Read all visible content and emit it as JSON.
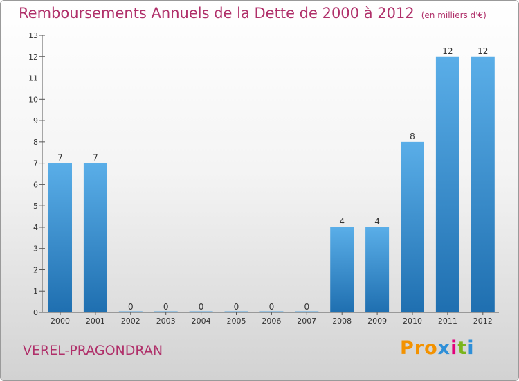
{
  "title": "Remboursements Annuels de la Dette de 2000 à 2012",
  "unit": "(en milliers d'€)",
  "commune": "VEREL-PRAGONDRAN",
  "logo": {
    "text": "Proxiti",
    "parts": [
      "Pro",
      "x",
      "i",
      "t",
      "i"
    ]
  },
  "colors": {
    "title": "#b0306a",
    "bar_top": "#5aaee8",
    "bar_bottom": "#1f6fb0"
  },
  "chart_data": {
    "type": "bar",
    "categories": [
      "2000",
      "2001",
      "2002",
      "2003",
      "2004",
      "2005",
      "2006",
      "2007",
      "2008",
      "2009",
      "2010",
      "2011",
      "2012"
    ],
    "values": [
      7,
      7,
      0,
      0,
      0,
      0,
      0,
      0,
      4,
      4,
      8,
      12,
      12
    ],
    "data_labels": [
      "7",
      "7",
      "0",
      "0",
      "0",
      "0",
      "0",
      "0",
      "4",
      "4",
      "8",
      "12",
      "12"
    ],
    "y_ticks": [
      0,
      1,
      2,
      3,
      4,
      5,
      6,
      7,
      8,
      9,
      10,
      11,
      12,
      13
    ],
    "ylim": [
      0,
      13
    ],
    "grid": false,
    "legend": "none"
  }
}
